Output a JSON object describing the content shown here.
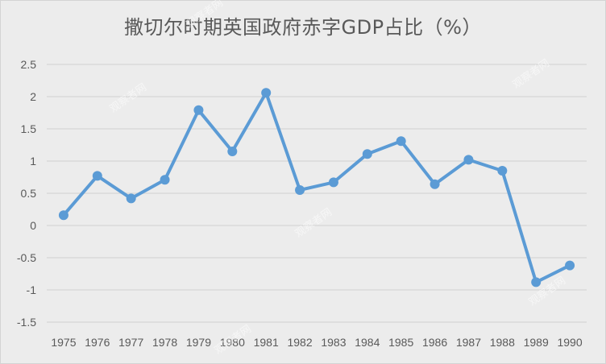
{
  "chart_data": {
    "type": "line",
    "title": "撒切尔时期英国政府赤字GDP占比（%）",
    "xlabel": "",
    "ylabel": "",
    "categories": [
      "1975",
      "1976",
      "1977",
      "1978",
      "1979",
      "1980",
      "1981",
      "1982",
      "1983",
      "1984",
      "1985",
      "1986",
      "1987",
      "1988",
      "1989",
      "1990"
    ],
    "series": [
      {
        "name": "政府赤字GDP占比",
        "color": "#5b9bd5",
        "values": [
          0.16,
          0.77,
          0.42,
          0.71,
          1.79,
          1.15,
          2.06,
          0.55,
          0.67,
          1.11,
          1.31,
          0.64,
          1.02,
          0.85,
          -0.88,
          -0.62
        ]
      }
    ],
    "ylim": [
      -1.5,
      2.5
    ],
    "yticks": [
      "2.5",
      "2",
      "1.5",
      "1",
      "0.5",
      "0",
      "-0.5",
      "-1",
      "-1.5"
    ],
    "grid": true,
    "legend": "none"
  },
  "watermark": "观察者网"
}
